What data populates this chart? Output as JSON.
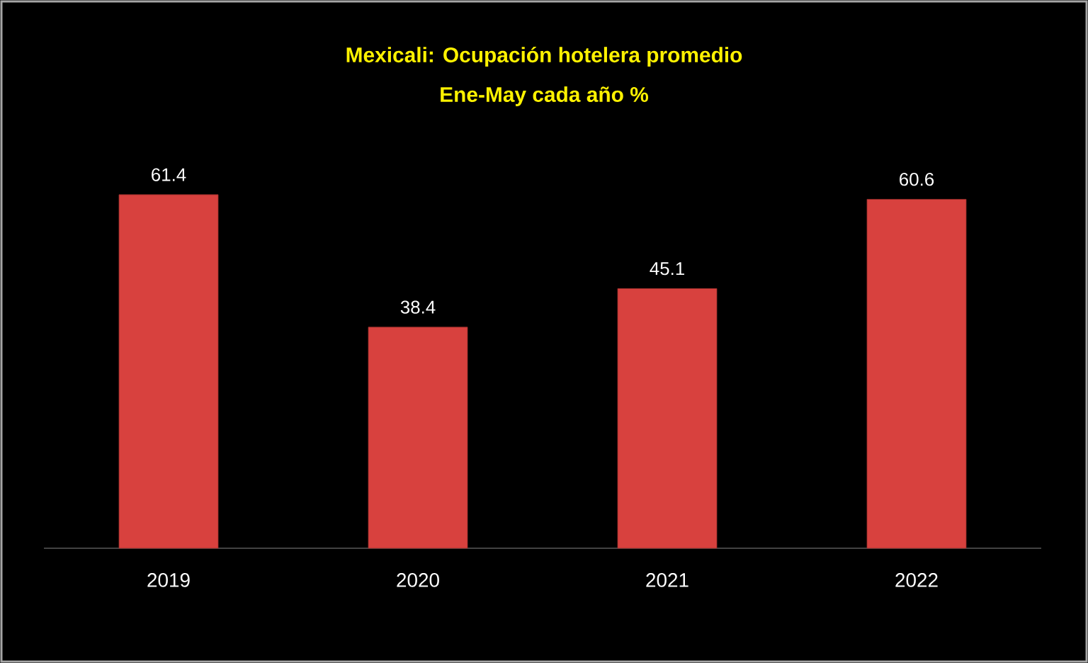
{
  "chart_data": {
    "type": "bar",
    "title": "Mexicali: Ocupación hotelera promedio",
    "subtitle": "Ene-May cada año %",
    "categories": [
      "2019",
      "2020",
      "2021",
      "2022"
    ],
    "values": [
      61.4,
      38.4,
      45.1,
      60.6
    ],
    "color": "#d8413e",
    "data_labels": true
  }
}
